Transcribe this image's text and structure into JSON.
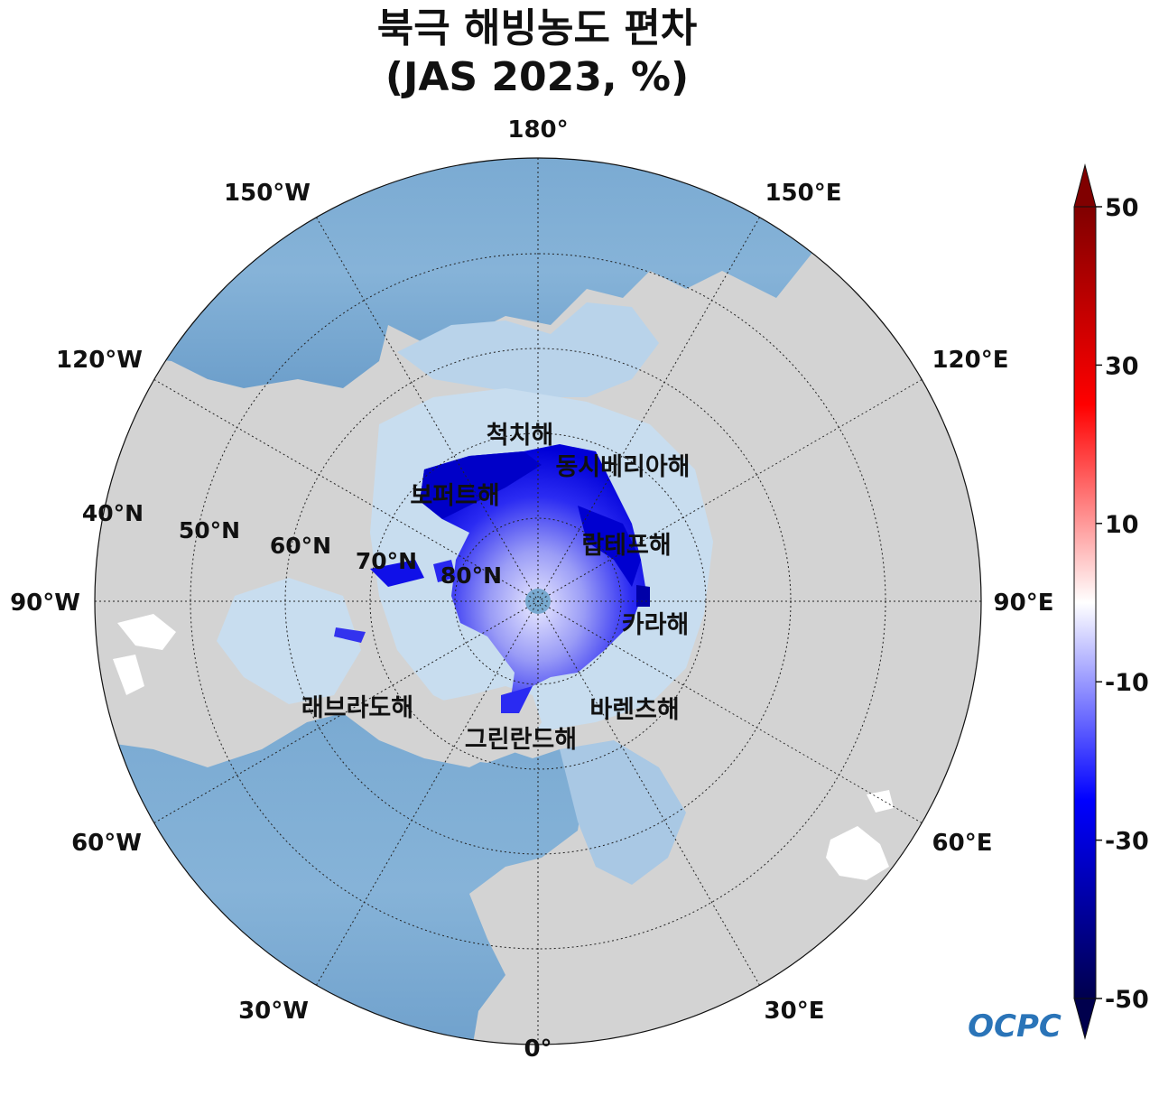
{
  "title": {
    "line1": "북극 해빙농도 편차",
    "line2": "(JAS 2023, %)"
  },
  "longitude_labels": {
    "lon_0": "0°",
    "lon_30e": "30°E",
    "lon_60e": "60°E",
    "lon_90e": "90°E",
    "lon_120e": "120°E",
    "lon_150e": "150°E",
    "lon_180": "180°",
    "lon_150w": "150°W",
    "lon_120w": "120°W",
    "lon_90w": "90°W",
    "lon_60w": "60°W",
    "lon_30w": "30°W"
  },
  "latitude_labels": {
    "lat_40": "40°N",
    "lat_50": "50°N",
    "lat_60": "60°N",
    "lat_70": "70°N",
    "lat_80": "80°N"
  },
  "seas": {
    "chukchi": "척치해",
    "east_siberian": "동시베리아해",
    "beaufort": "보퍼트해",
    "laptev": "랍테프해",
    "kara": "카라해",
    "barents": "바렌츠해",
    "greenland": "그린란드해",
    "labrador": "래브라도해"
  },
  "colorbar": {
    "tick_labels": [
      "50",
      "30",
      "10",
      "-10",
      "-30",
      "-50"
    ],
    "range": [
      -50,
      50
    ],
    "extend": "both",
    "colors": [
      "#00004d",
      "#0000ff",
      "#ffffff",
      "#ff0000",
      "#800000"
    ]
  },
  "logo": {
    "text": "OCPC"
  },
  "map_colors": {
    "land": "#d3d3d3",
    "ocean": "#78a9d0",
    "shelf": "#c8ddef",
    "anomaly_max": "#0000e0",
    "anomaly_light": "#e8e8ff"
  }
}
